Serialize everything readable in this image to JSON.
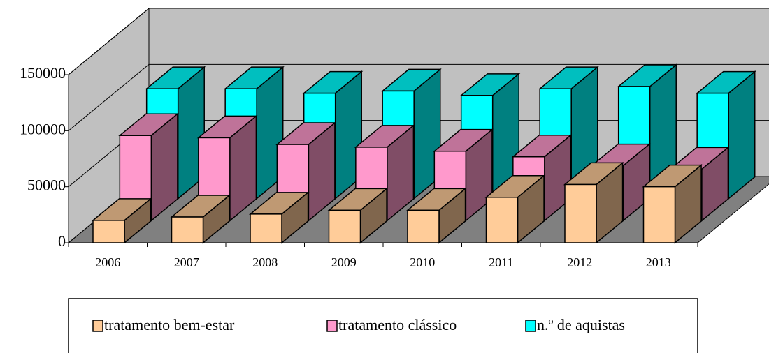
{
  "chart_data": {
    "type": "bar3d",
    "categories": [
      "2006",
      "2007",
      "2008",
      "2009",
      "2010",
      "2011",
      "2012",
      "2013"
    ],
    "series": [
      {
        "name": "tratamento bem-estar",
        "color": "#ffcc99",
        "values": [
          20000,
          23000,
          25600,
          29000,
          29000,
          40600,
          52000,
          50000
        ]
      },
      {
        "name": "tratamento clássico",
        "color": "#ff99cc",
        "values": [
          76000,
          74000,
          68000,
          65600,
          62000,
          57000,
          49000,
          46000
        ]
      },
      {
        "name": "n.º de aquistas",
        "color": "#00ffff",
        "values": [
          98000,
          98000,
          94000,
          96000,
          92000,
          98000,
          100000,
          94000
        ]
      }
    ],
    "ylim": [
      0,
      150000
    ],
    "yticks": [
      0,
      50000,
      100000,
      150000
    ],
    "grid": true,
    "legend": "bottom"
  }
}
